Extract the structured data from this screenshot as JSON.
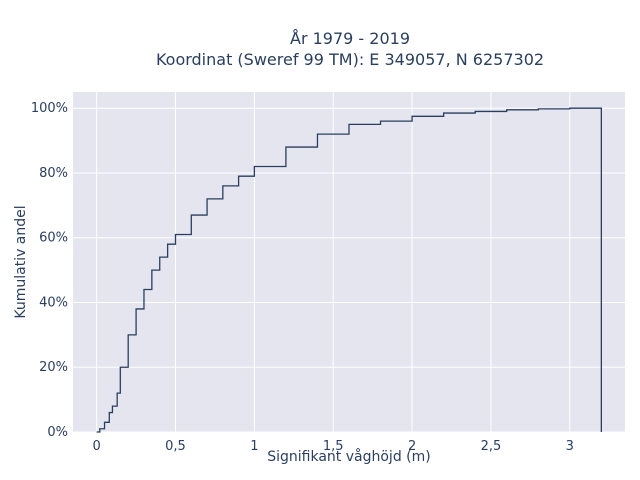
{
  "chart_data": {
    "type": "line",
    "line_shape": "step",
    "title": [
      "År 1979 - 2019",
      "Koordinat (Sweref 99 TM): E 349057, N 6257302"
    ],
    "xlabel": "Signifikant våghöjd (m)",
    "ylabel": "Kumulativ andel",
    "xlim": [
      -0.15,
      3.35
    ],
    "ylim": [
      0,
      1.05
    ],
    "x_ticks": [
      0,
      0.5,
      1,
      1.5,
      2,
      2.5,
      3
    ],
    "x_tick_labels": [
      "0",
      "0,5",
      "1",
      "1,5",
      "2",
      "2,5",
      "3"
    ],
    "y_ticks": [
      0,
      0.2,
      0.4,
      0.6,
      0.8,
      1.0
    ],
    "y_tick_labels": [
      "0%",
      "20%",
      "40%",
      "60%",
      "80%",
      "100%"
    ],
    "grid": true,
    "background": "#e5e5f0",
    "line_color": "#2a3f5f",
    "series": [
      {
        "x": [
          0.0,
          0.02,
          0.05,
          0.08,
          0.1,
          0.13,
          0.15,
          0.2,
          0.25,
          0.3,
          0.35,
          0.4,
          0.45,
          0.5,
          0.6,
          0.7,
          0.8,
          0.9,
          1.0,
          1.2,
          1.4,
          1.6,
          1.8,
          2.0,
          2.2,
          2.4,
          2.6,
          2.8,
          3.0,
          3.2,
          3.2
        ],
        "y": [
          0.0,
          0.01,
          0.03,
          0.06,
          0.08,
          0.12,
          0.2,
          0.3,
          0.38,
          0.44,
          0.5,
          0.54,
          0.58,
          0.61,
          0.67,
          0.72,
          0.76,
          0.79,
          0.82,
          0.88,
          0.92,
          0.95,
          0.96,
          0.975,
          0.985,
          0.99,
          0.995,
          0.998,
          1.0,
          1.0,
          0.0
        ]
      }
    ]
  }
}
